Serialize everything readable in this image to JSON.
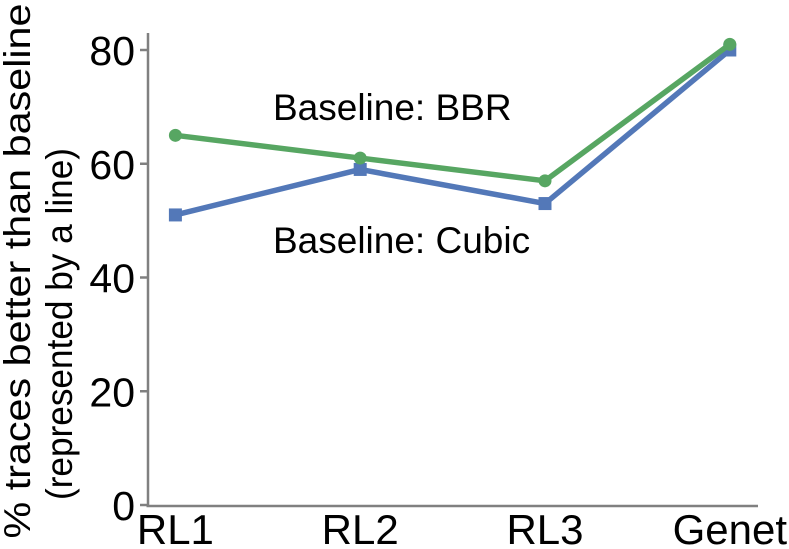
{
  "figure": {
    "background": "#ffffff",
    "axis_color": "#808080",
    "text_color": "#000000"
  },
  "chart_data": {
    "type": "line",
    "title": "",
    "categories": [
      "RL1",
      "RL2",
      "RL3",
      "Genet"
    ],
    "series": [
      {
        "name": "Baseline: BBR",
        "color": "#57a662",
        "marker": "circle",
        "values": [
          65,
          61,
          57,
          81
        ]
      },
      {
        "name": "Baseline: Cubic",
        "color": "#5378b8",
        "marker": "square",
        "values": [
          51,
          59,
          53,
          80
        ]
      }
    ],
    "annotations": [
      {
        "text": "Baseline: BBR"
      },
      {
        "text": "Baseline: Cubic"
      }
    ],
    "ylabel_lines": [
      "% traces better than baseline",
      "(represented by a line)"
    ],
    "xlabel": "",
    "yticks": [
      0,
      20,
      40,
      60,
      80
    ],
    "ylim": [
      0,
      83
    ],
    "grid": false,
    "legend_position": "none (labels drawn as inline text annotations)"
  }
}
